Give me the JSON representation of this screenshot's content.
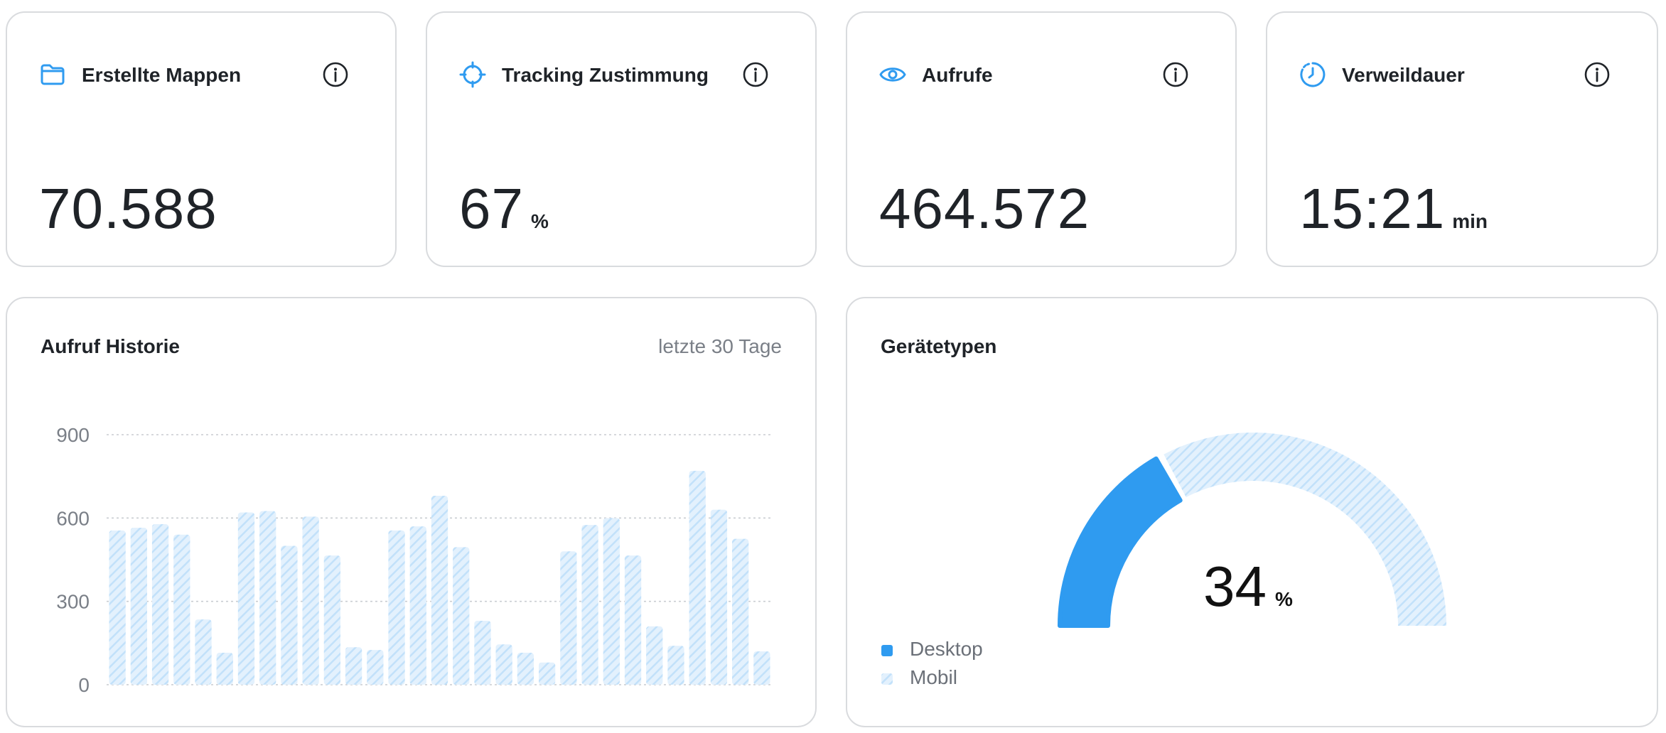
{
  "colors": {
    "accent": "#2f9bf0",
    "hatch_light": "#e3f1fd",
    "hatch_dark": "#c2e1fa",
    "border": "#d9dbde",
    "text_muted": "#7a7f87"
  },
  "kpis": [
    {
      "icon": "folder-icon",
      "title": "Erstellte Mappen",
      "value": "70.588",
      "unit": ""
    },
    {
      "icon": "crosshair-icon",
      "title": "Tracking Zustimmung",
      "value": "67",
      "unit": "%"
    },
    {
      "icon": "eye-icon",
      "title": "Aufrufe",
      "value": "464.572",
      "unit": ""
    },
    {
      "icon": "timer-icon",
      "title": "Verweildauer",
      "value": "15:21",
      "unit": "min"
    }
  ],
  "history": {
    "title": "Aufruf Historie",
    "range_label": "letzte 30 Tage"
  },
  "devices": {
    "title": "Gerätetypen",
    "value": "34",
    "unit": "%",
    "legend": [
      {
        "label": "Desktop",
        "style": "solid"
      },
      {
        "label": "Mobil",
        "style": "hatched"
      }
    ]
  },
  "chart_data": [
    {
      "type": "bar",
      "title": "Aufruf Historie",
      "ylim": [
        0,
        900
      ],
      "yticks": [
        0,
        300,
        600,
        900
      ],
      "grid": true,
      "values": [
        555,
        565,
        578,
        540,
        235,
        115,
        620,
        625,
        500,
        605,
        465,
        135,
        125,
        555,
        570,
        680,
        495,
        230,
        145,
        115,
        80,
        480,
        575,
        600,
        465,
        210,
        140,
        770,
        630,
        525,
        120
      ]
    },
    {
      "type": "pie",
      "style": "half-donut",
      "slices": [
        {
          "name": "Desktop",
          "value": 34
        },
        {
          "name": "Mobil",
          "value": 66
        }
      ]
    }
  ]
}
